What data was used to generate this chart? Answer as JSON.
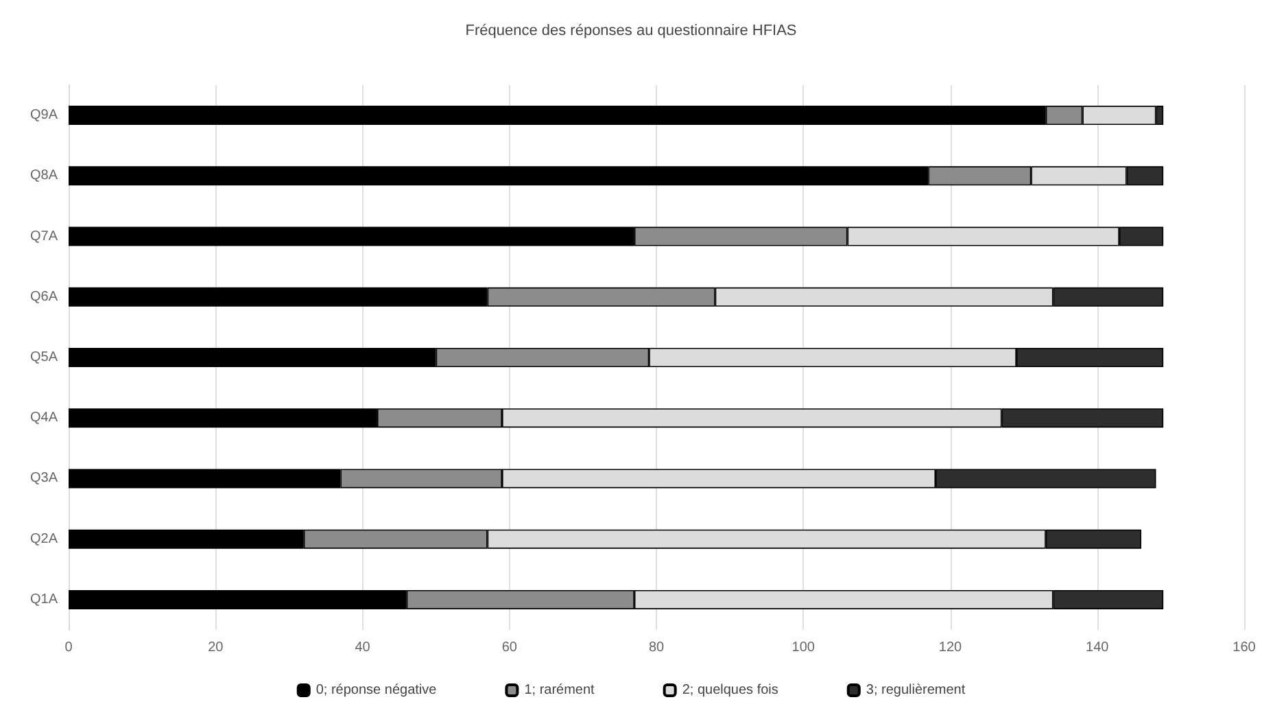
{
  "chart_data": {
    "type": "bar",
    "orientation": "horizontal",
    "stacked": true,
    "title": "Fréquence des réponses au questionnaire HFIAS",
    "categories": [
      "Q9A",
      "Q8A",
      "Q7A",
      "Q6A",
      "Q5A",
      "Q4A",
      "Q3A",
      "Q2A",
      "Q1A"
    ],
    "series": [
      {
        "name": "0; réponse négative",
        "color": "#000000",
        "values": [
          133,
          117,
          77,
          57,
          50,
          42,
          37,
          32,
          46
        ]
      },
      {
        "name": "1; rarément",
        "color": "#8c8c8c",
        "values": [
          5,
          14,
          29,
          31,
          29,
          17,
          22,
          25,
          31
        ]
      },
      {
        "name": "2; quelques fois",
        "color": "#dcdcdc",
        "values": [
          10,
          13,
          37,
          46,
          50,
          68,
          59,
          76,
          57
        ]
      },
      {
        "name": "3; regulièrement",
        "color": "#2e2e2e",
        "values": [
          1,
          5,
          6,
          15,
          20,
          22,
          30,
          13,
          15
        ]
      }
    ],
    "xlim": [
      0,
      160
    ],
    "xticks": [
      0,
      20,
      40,
      60,
      80,
      100,
      120,
      140,
      160
    ],
    "grid": "x",
    "legend": "bottom"
  }
}
